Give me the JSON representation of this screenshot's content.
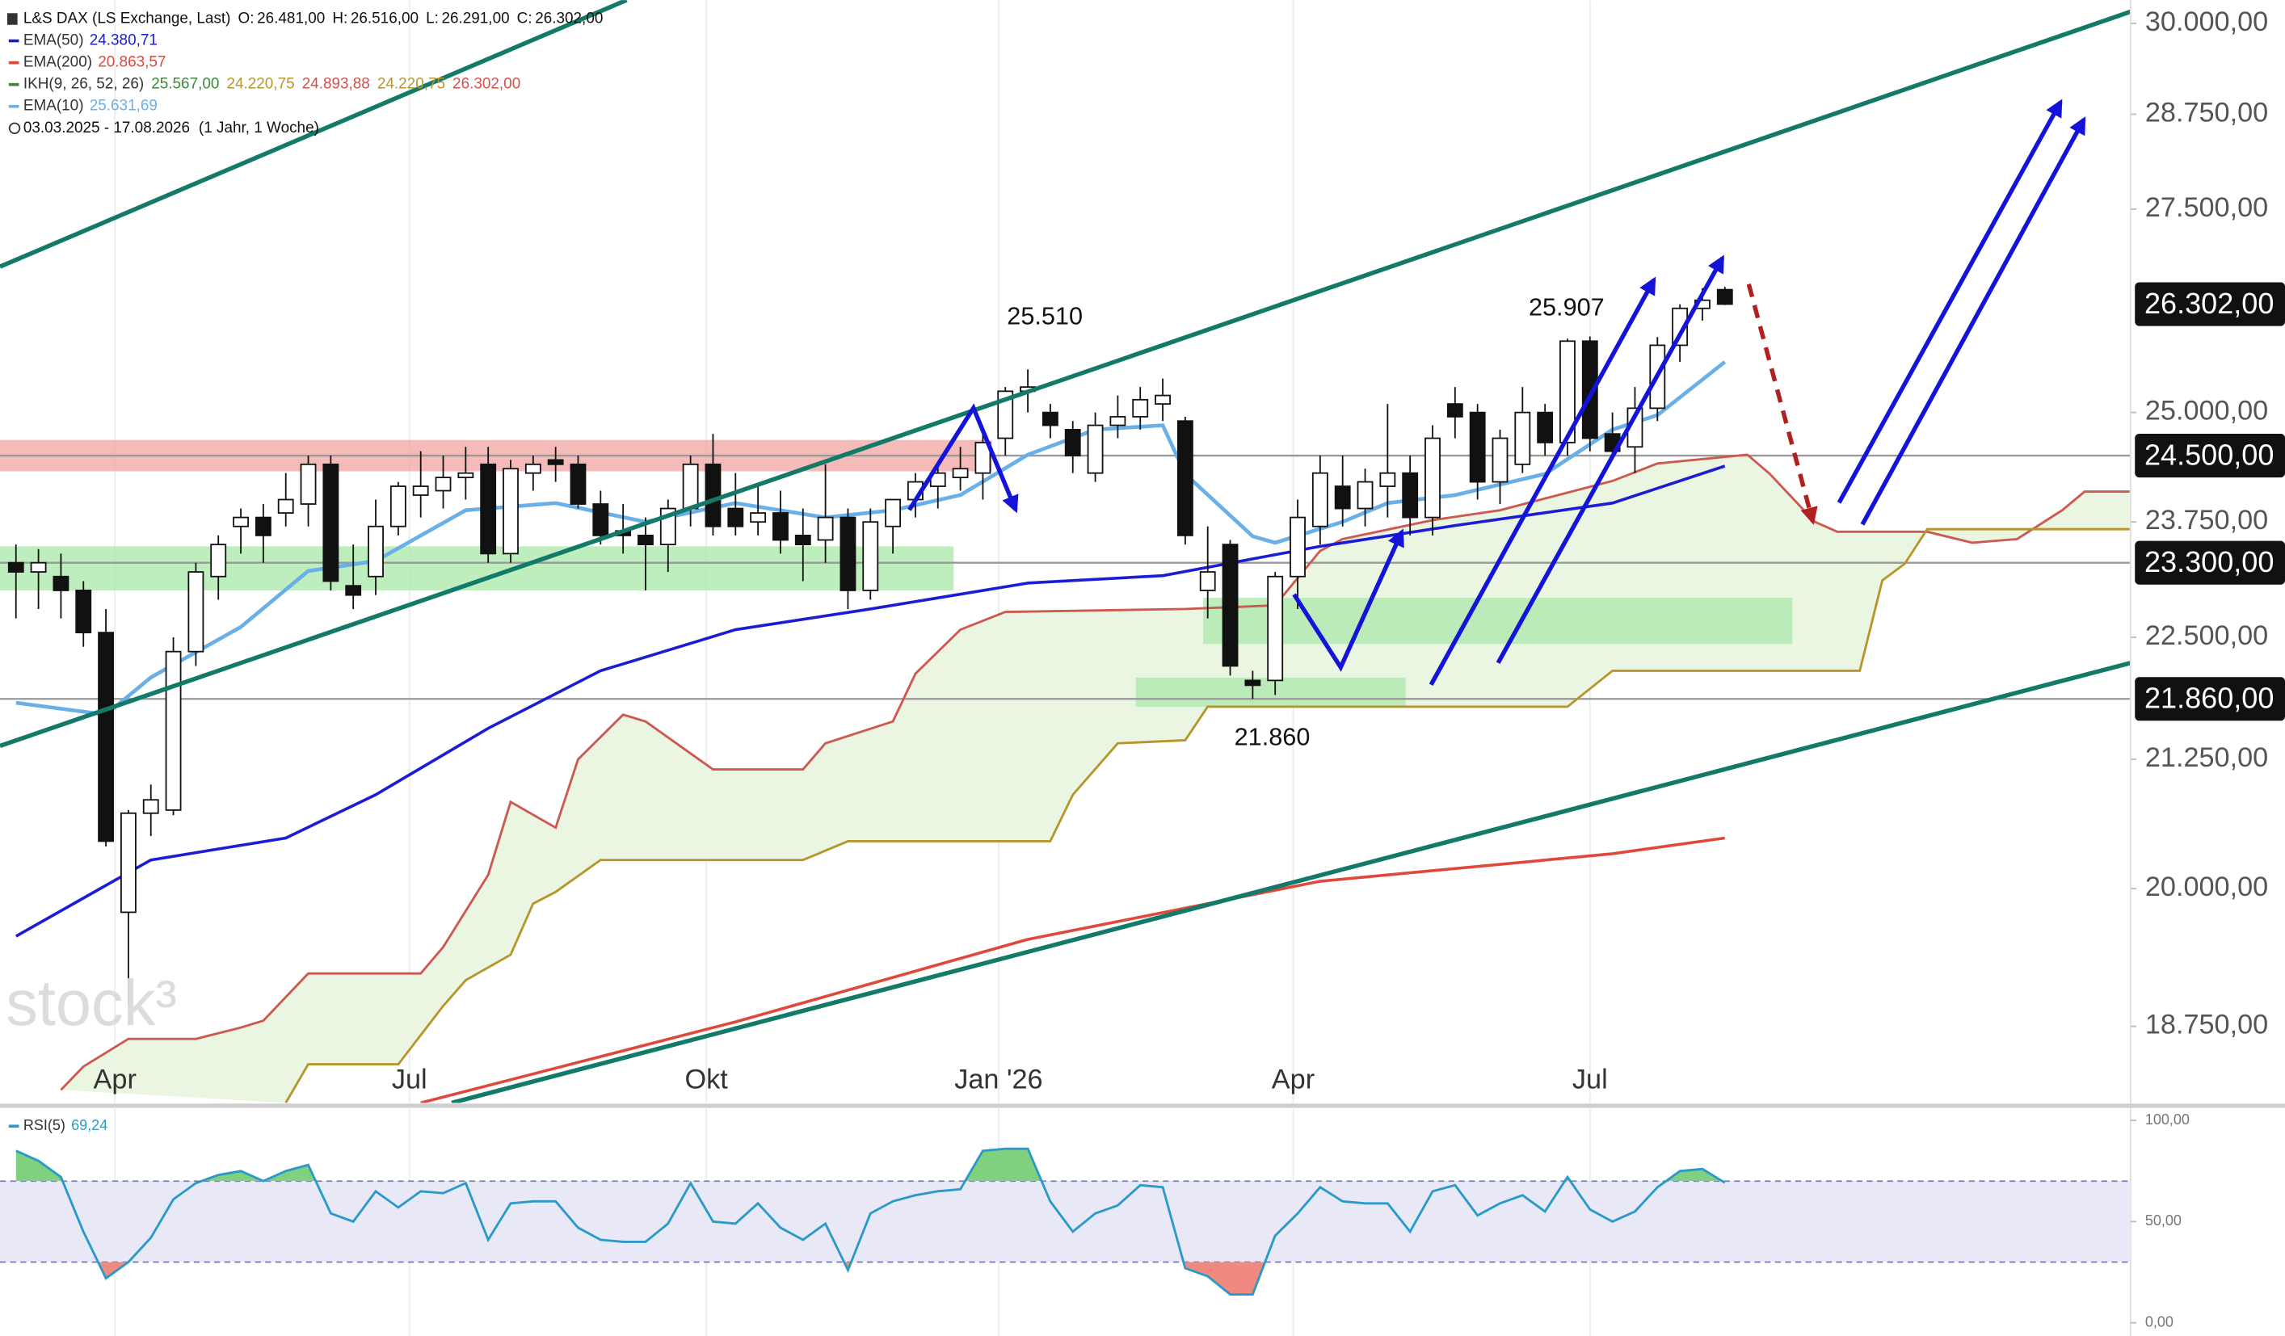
{
  "chart_data": {
    "type": "candlestick",
    "title": "L&S DAX (LS Exchange, Last)",
    "ohlc": [
      {
        "key": "O:",
        "label": "26.481,00"
      },
      {
        "key": "H:",
        "label": "26.516,00"
      },
      {
        "key": "L:",
        "label": "26.291,00"
      },
      {
        "key": "C:",
        "label": "26.302,00"
      }
    ],
    "period": "03.03.2025 - 17.08.2026",
    "period_note": "(1 Jahr, 1 Woche)",
    "watermark": "stock³",
    "log_scale": true,
    "xlim": [
      -0.71,
      94.04
    ],
    "ylim": [
      18090,
      30330
    ],
    "xticks": [
      {
        "value": 4.4,
        "label": "Apr"
      },
      {
        "value": 17.5,
        "label": "Jul"
      },
      {
        "value": 30.7,
        "label": "Okt"
      },
      {
        "value": 43.7,
        "label": "Jan '26"
      },
      {
        "value": 56.8,
        "label": "Apr"
      },
      {
        "value": 70.0,
        "label": "Jul"
      }
    ],
    "yticks": [
      {
        "value": 30000,
        "label": "30.000,00"
      },
      {
        "value": 28750,
        "label": "28.750,00"
      },
      {
        "value": 27500,
        "label": "27.500,00"
      },
      {
        "value": 25000,
        "label": "25.000,00"
      },
      {
        "value": 23750,
        "label": "23.750,00"
      },
      {
        "value": 22500,
        "label": "22.500,00"
      },
      {
        "value": 21250,
        "label": "21.250,00"
      },
      {
        "value": 20000,
        "label": "20.000,00"
      },
      {
        "value": 18750,
        "label": "18.750,00"
      }
    ],
    "levels": [
      {
        "value": 24500,
        "label": "24.500,00"
      },
      {
        "value": 23300,
        "label": "23.300,00"
      },
      {
        "value": 21860,
        "label": "21.860,00"
      }
    ],
    "price_label": {
      "value": 26302,
      "label": "26.302,00"
    },
    "annotations": [
      {
        "value": 25510,
        "label": "25.510"
      },
      {
        "value": 25907,
        "label": "25.907"
      },
      {
        "value": 21860,
        "label": "21.860"
      }
    ],
    "zones": [
      {
        "from": -0.71,
        "to": 43.4,
        "lo": 24320,
        "hi": 24680,
        "color": "#f2aaa6"
      },
      {
        "from": -0.71,
        "to": 41.7,
        "lo": 23000,
        "hi": 23480,
        "color": "#aee8ae"
      },
      {
        "from": 52.8,
        "to": 79,
        "lo": 22430,
        "hi": 22920,
        "color": "#aee8ae"
      },
      {
        "from": 49.8,
        "to": 61.8,
        "lo": 21780,
        "hi": 22080,
        "color": "#aee8ae"
      }
    ],
    "candles": [
      [
        23300,
        23500,
        22700,
        23200
      ],
      [
        23200,
        23450,
        22800,
        23300
      ],
      [
        23150,
        23400,
        22700,
        23000
      ],
      [
        23000,
        23100,
        22400,
        22550
      ],
      [
        22550,
        22800,
        20400,
        20450
      ],
      [
        19780,
        20750,
        18950,
        20720
      ],
      [
        20720,
        21000,
        20500,
        20850
      ],
      [
        20750,
        22500,
        20700,
        22350
      ],
      [
        22350,
        23300,
        22200,
        23200
      ],
      [
        23150,
        23600,
        22900,
        23500
      ],
      [
        23700,
        23900,
        23400,
        23800
      ],
      [
        23800,
        23950,
        23300,
        23600
      ],
      [
        23850,
        24300,
        23700,
        24000
      ],
      [
        23950,
        24500,
        23700,
        24400
      ],
      [
        24400,
        24500,
        23000,
        23100
      ],
      [
        23050,
        23500,
        22800,
        22950
      ],
      [
        23150,
        24000,
        22950,
        23700
      ],
      [
        23700,
        24200,
        23600,
        24150
      ],
      [
        24050,
        24550,
        23800,
        24150
      ],
      [
        24100,
        24500,
        23900,
        24250
      ],
      [
        24250,
        24600,
        24000,
        24300
      ],
      [
        24400,
        24600,
        23300,
        23400
      ],
      [
        23400,
        24450,
        23300,
        24350
      ],
      [
        24300,
        24500,
        24100,
        24400
      ],
      [
        24450,
        24600,
        24200,
        24400
      ],
      [
        24400,
        24500,
        23900,
        23950
      ],
      [
        23950,
        24100,
        23500,
        23600
      ],
      [
        23650,
        23950,
        23400,
        23600
      ],
      [
        23600,
        23800,
        23000,
        23500
      ],
      [
        23500,
        24000,
        23200,
        23900
      ],
      [
        23900,
        24500,
        23700,
        24400
      ],
      [
        24400,
        24750,
        23600,
        23700
      ],
      [
        23900,
        24300,
        23600,
        23700
      ],
      [
        23750,
        24150,
        23600,
        23850
      ],
      [
        23850,
        24100,
        23400,
        23550
      ],
      [
        23600,
        23900,
        23100,
        23500
      ],
      [
        23550,
        24400,
        23300,
        23800
      ],
      [
        23800,
        23900,
        22800,
        23000
      ],
      [
        23000,
        23900,
        22900,
        23750
      ],
      [
        23700,
        24000,
        23400,
        24000
      ],
      [
        24000,
        24300,
        23800,
        24200
      ],
      [
        24150,
        24400,
        23900,
        24300
      ],
      [
        24250,
        24600,
        24100,
        24350
      ],
      [
        24300,
        24800,
        24000,
        24650
      ],
      [
        24700,
        25300,
        24500,
        25250
      ],
      [
        25250,
        25510,
        25000,
        25300
      ],
      [
        25000,
        25100,
        24700,
        24850
      ],
      [
        24800,
        24900,
        24300,
        24500
      ],
      [
        24300,
        25000,
        24200,
        24850
      ],
      [
        24850,
        25200,
        24700,
        24950
      ],
      [
        24950,
        25300,
        24800,
        25150
      ],
      [
        25100,
        25400,
        24900,
        25200
      ],
      [
        24900,
        24950,
        23500,
        23600
      ],
      [
        23000,
        23700,
        22700,
        23200
      ],
      [
        23500,
        23550,
        22100,
        22200
      ],
      [
        22050,
        22150,
        21860,
        22000
      ],
      [
        22050,
        23200,
        21900,
        23150
      ],
      [
        23150,
        24000,
        22800,
        23800
      ],
      [
        23700,
        24500,
        23500,
        24300
      ],
      [
        24150,
        24500,
        23700,
        23900
      ],
      [
        23900,
        24350,
        23700,
        24200
      ],
      [
        24150,
        25100,
        23800,
        24300
      ],
      [
        24300,
        24500,
        23600,
        23800
      ],
      [
        23800,
        24850,
        23600,
        24700
      ],
      [
        25100,
        25300,
        24700,
        24950
      ],
      [
        25000,
        25100,
        24000,
        24200
      ],
      [
        24200,
        24800,
        23950,
        24700
      ],
      [
        24400,
        25300,
        24300,
        25000
      ],
      [
        25000,
        25100,
        24500,
        24650
      ],
      [
        24650,
        25880,
        24500,
        25850
      ],
      [
        25850,
        25907,
        24550,
        24700
      ],
      [
        24750,
        25000,
        24450,
        24550
      ],
      [
        24600,
        25300,
        24300,
        25050
      ],
      [
        25050,
        25900,
        24900,
        25800
      ],
      [
        25800,
        26300,
        25600,
        26250
      ],
      [
        26250,
        26500,
        26100,
        26350
      ],
      [
        26481,
        26516,
        26291,
        26302
      ]
    ],
    "series": [
      {
        "name": "EMA(50)",
        "color": "#1c1cd6",
        "last_label": "24.380,71",
        "x": [
          0,
          6,
          12,
          16,
          21,
          26,
          32,
          38,
          45,
          51,
          58,
          64,
          71,
          76
        ],
        "values": [
          19560,
          20270,
          20480,
          20900,
          21560,
          22150,
          22580,
          22800,
          23080,
          23160,
          23480,
          23710,
          23960,
          24380
        ]
      },
      {
        "name": "EMA(200)",
        "color": "#e0483a",
        "last_label": "20.863,57",
        "x": [
          18,
          32,
          45,
          58,
          71,
          76
        ],
        "values": [
          18090,
          18790,
          19530,
          20070,
          20330,
          20480
        ]
      },
      {
        "name": "EMA(10)",
        "color": "#6ab0e8",
        "last_label": "25.631,69",
        "x": [
          0,
          4,
          6,
          10,
          13,
          16,
          20,
          24,
          28,
          32,
          36,
          39,
          42,
          45,
          48,
          51,
          52,
          55,
          56,
          59,
          61,
          64,
          68,
          71,
          73,
          76
        ],
        "values": [
          21820,
          21700,
          22080,
          22610,
          23210,
          23320,
          23880,
          23960,
          23750,
          23960,
          23800,
          23880,
          24050,
          24510,
          24800,
          24850,
          24290,
          23590,
          23520,
          23750,
          23960,
          24050,
          24290,
          24800,
          24970,
          25600
        ]
      }
    ],
    "ichimoku": {
      "name": "IKH(9, 26, 52, 26)",
      "color": "#3a8a3a",
      "cloud_color": "#eaf6e2",
      "labels": [
        {
          "label": "25.567,00",
          "color": "#3a8a3a"
        },
        {
          "label": "24.220,75",
          "color": "#b8962e"
        },
        {
          "label": "24.893,88",
          "color": "#d0524a"
        },
        {
          "label": "24.220,75",
          "color": "#b8962e"
        },
        {
          "label": "26.302,00",
          "color": "#d0524a"
        }
      ],
      "span_a": {
        "color": "#cc5a50",
        "x": [
          2,
          3,
          5,
          8,
          10,
          11,
          13,
          18,
          19,
          21,
          22,
          24,
          25,
          27,
          28,
          31,
          35,
          36,
          39,
          40,
          42,
          44,
          52,
          56,
          58,
          59,
          63,
          66,
          71,
          73,
          77,
          78,
          80,
          81,
          85,
          87,
          89,
          91,
          92,
          94
        ],
        "values": [
          18200,
          18400,
          18640,
          18640,
          18740,
          18800,
          19220,
          19220,
          19460,
          20130,
          20830,
          20580,
          21250,
          21700,
          21630,
          21150,
          21150,
          21410,
          21630,
          22120,
          22580,
          22770,
          22800,
          22840,
          23430,
          23560,
          23770,
          23880,
          24210,
          24410,
          24510,
          24290,
          23750,
          23640,
          23640,
          23520,
          23560,
          23880,
          24090,
          24090
        ]
      },
      "span_b": {
        "color": "#b8962e",
        "x": [
          12,
          13,
          17,
          19,
          20,
          22,
          23,
          24,
          26,
          35,
          37,
          46,
          47,
          49,
          52,
          53,
          69,
          71,
          82,
          83,
          84,
          85,
          94
        ],
        "values": [
          18090,
          18420,
          18420,
          18930,
          19160,
          19390,
          19860,
          19970,
          20270,
          20270,
          20450,
          20450,
          20900,
          21410,
          21440,
          21780,
          21780,
          22150,
          22150,
          23110,
          23290,
          23670,
          23670
        ]
      }
    },
    "rsi": {
      "name": "RSI(5)",
      "last_label": "69,24",
      "color": "#2b9ac9",
      "ylim": [
        -6.5,
        106.5
      ],
      "yticks": [
        {
          "value": 100,
          "label": "100,00"
        },
        {
          "value": 50,
          "label": "50,00"
        },
        {
          "value": 0,
          "label": "0,00"
        }
      ],
      "bands": [
        30,
        70
      ],
      "values": [
        85,
        80,
        72,
        45,
        22,
        30,
        42,
        61,
        69,
        73,
        75,
        70,
        75,
        78,
        54,
        50,
        65,
        57,
        65,
        64,
        69,
        41,
        59,
        60,
        60,
        47,
        41,
        40,
        40,
        49,
        69,
        50,
        49,
        59,
        47,
        41,
        49,
        26,
        54,
        60,
        63,
        65,
        66,
        85,
        86,
        86,
        60,
        45,
        54,
        58,
        68,
        67,
        27,
        23,
        14,
        14,
        43,
        54,
        67,
        60,
        59,
        59,
        45,
        65,
        68,
        53,
        59,
        63,
        55,
        72,
        56,
        50,
        55,
        67,
        75,
        76,
        69.24
      ]
    }
  }
}
